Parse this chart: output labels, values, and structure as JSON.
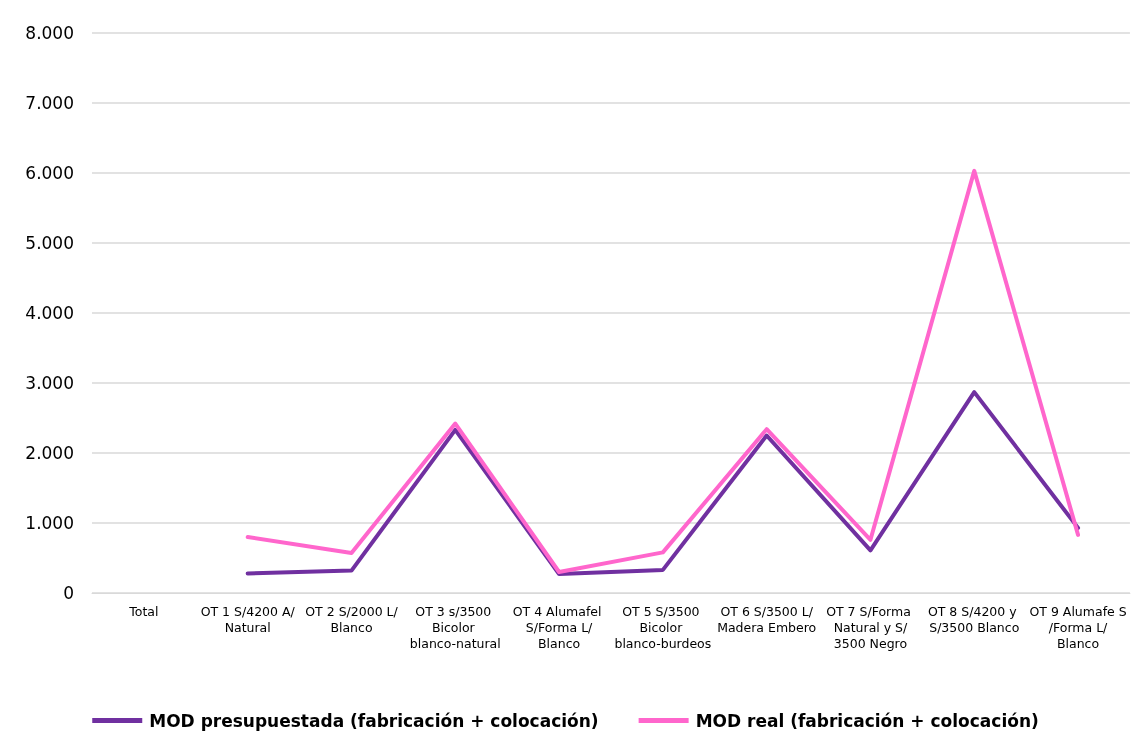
{
  "chart_data": {
    "type": "line",
    "categories": [
      "Total",
      "OT 1 S/4200 A/Natural",
      "OT 2 S/2000 L/Blanco",
      "OT 3 s/3500 Bicolor blanco-natural",
      "OT 4 Alumafel S/Forma L/Blanco",
      "OT 5 S/3500 Bicolor blanco-burdeos",
      "OT 6 S/3500 L/Madera Embero",
      "OT 7 S/Forma Natural y S/3500 Negro",
      "OT 8 S/4200 y S/3500 Blanco",
      "OT 9 Alumafe S/Forma L/Blanco"
    ],
    "series": [
      {
        "name": "MOD presupuestada (fabricación + colocación)",
        "color": "#7030a0",
        "values": [
          null,
          280,
          320,
          2330,
          270,
          330,
          2250,
          610,
          2870,
          930
        ]
      },
      {
        "name": "MOD real (fabricación + colocación)",
        "color": "#ff66cc",
        "values": [
          null,
          800,
          570,
          2420,
          300,
          580,
          2340,
          760,
          6030,
          830
        ]
      }
    ],
    "ylim": [
      0,
      8000
    ],
    "yticks": [
      0,
      {
        "value": 1000,
        "label": "1.000"
      },
      {
        "value": 2000,
        "label": "2.000"
      },
      {
        "value": 3000,
        "label": "3.000"
      },
      {
        "value": 4000,
        "label": "4.000"
      },
      {
        "value": 5000,
        "label": "5.000"
      },
      {
        "value": 6000,
        "label": "6.000"
      },
      {
        "value": 7000,
        "label": "7.000"
      },
      {
        "value": 8000,
        "label": "8.000"
      }
    ],
    "grid": "y",
    "legend": "bottom",
    "marker": "none",
    "line_style": "solid"
  }
}
